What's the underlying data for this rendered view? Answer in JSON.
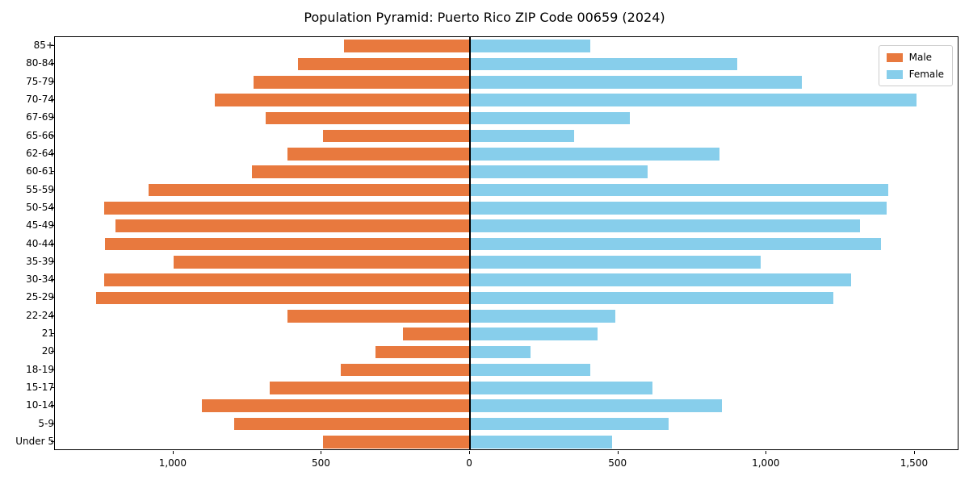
{
  "title": "Population Pyramid: Puerto Rico ZIP Code 00659 (2024)",
  "legend": {
    "male_label": "Male",
    "female_label": "Female"
  },
  "colors": {
    "male": "#e8793e",
    "female": "#87ceeb",
    "axis": "#000000"
  },
  "chart_data": {
    "type": "bar",
    "subtype": "population-pyramid",
    "orientation": "horizontal",
    "title": "Population Pyramid: Puerto Rico ZIP Code 00659 (2024)",
    "categories": [
      "85+",
      "80-84",
      "75-79",
      "70-74",
      "67-69",
      "65-66",
      "62-64",
      "60-61",
      "55-59",
      "50-54",
      "45-49",
      "40-44",
      "35-39",
      "30-34",
      "25-29",
      "22-24",
      "21",
      "20",
      "18-19",
      "15-17",
      "10-14",
      "5-9",
      "Under 5"
    ],
    "series": [
      {
        "name": "Male",
        "side": "left",
        "color": "#e8793e",
        "values": [
          425,
          580,
          730,
          860,
          690,
          495,
          615,
          735,
          1085,
          1235,
          1195,
          1230,
          1000,
          1235,
          1260,
          615,
          225,
          320,
          435,
          675,
          905,
          795,
          495
        ]
      },
      {
        "name": "Female",
        "side": "right",
        "color": "#87ceeb",
        "values": [
          405,
          900,
          1120,
          1505,
          540,
          350,
          840,
          600,
          1410,
          1405,
          1315,
          1385,
          980,
          1285,
          1225,
          490,
          430,
          205,
          405,
          615,
          850,
          670,
          480
        ]
      }
    ],
    "x_ticks": [
      -1000,
      -500,
      0,
      500,
      1000,
      1500
    ],
    "x_tick_labels": [
      "1,000",
      "500",
      "0",
      "500",
      "1,000",
      "1,500"
    ],
    "xlim": [
      -1400,
      1650
    ],
    "grid": false,
    "legend_position": "upper right"
  }
}
